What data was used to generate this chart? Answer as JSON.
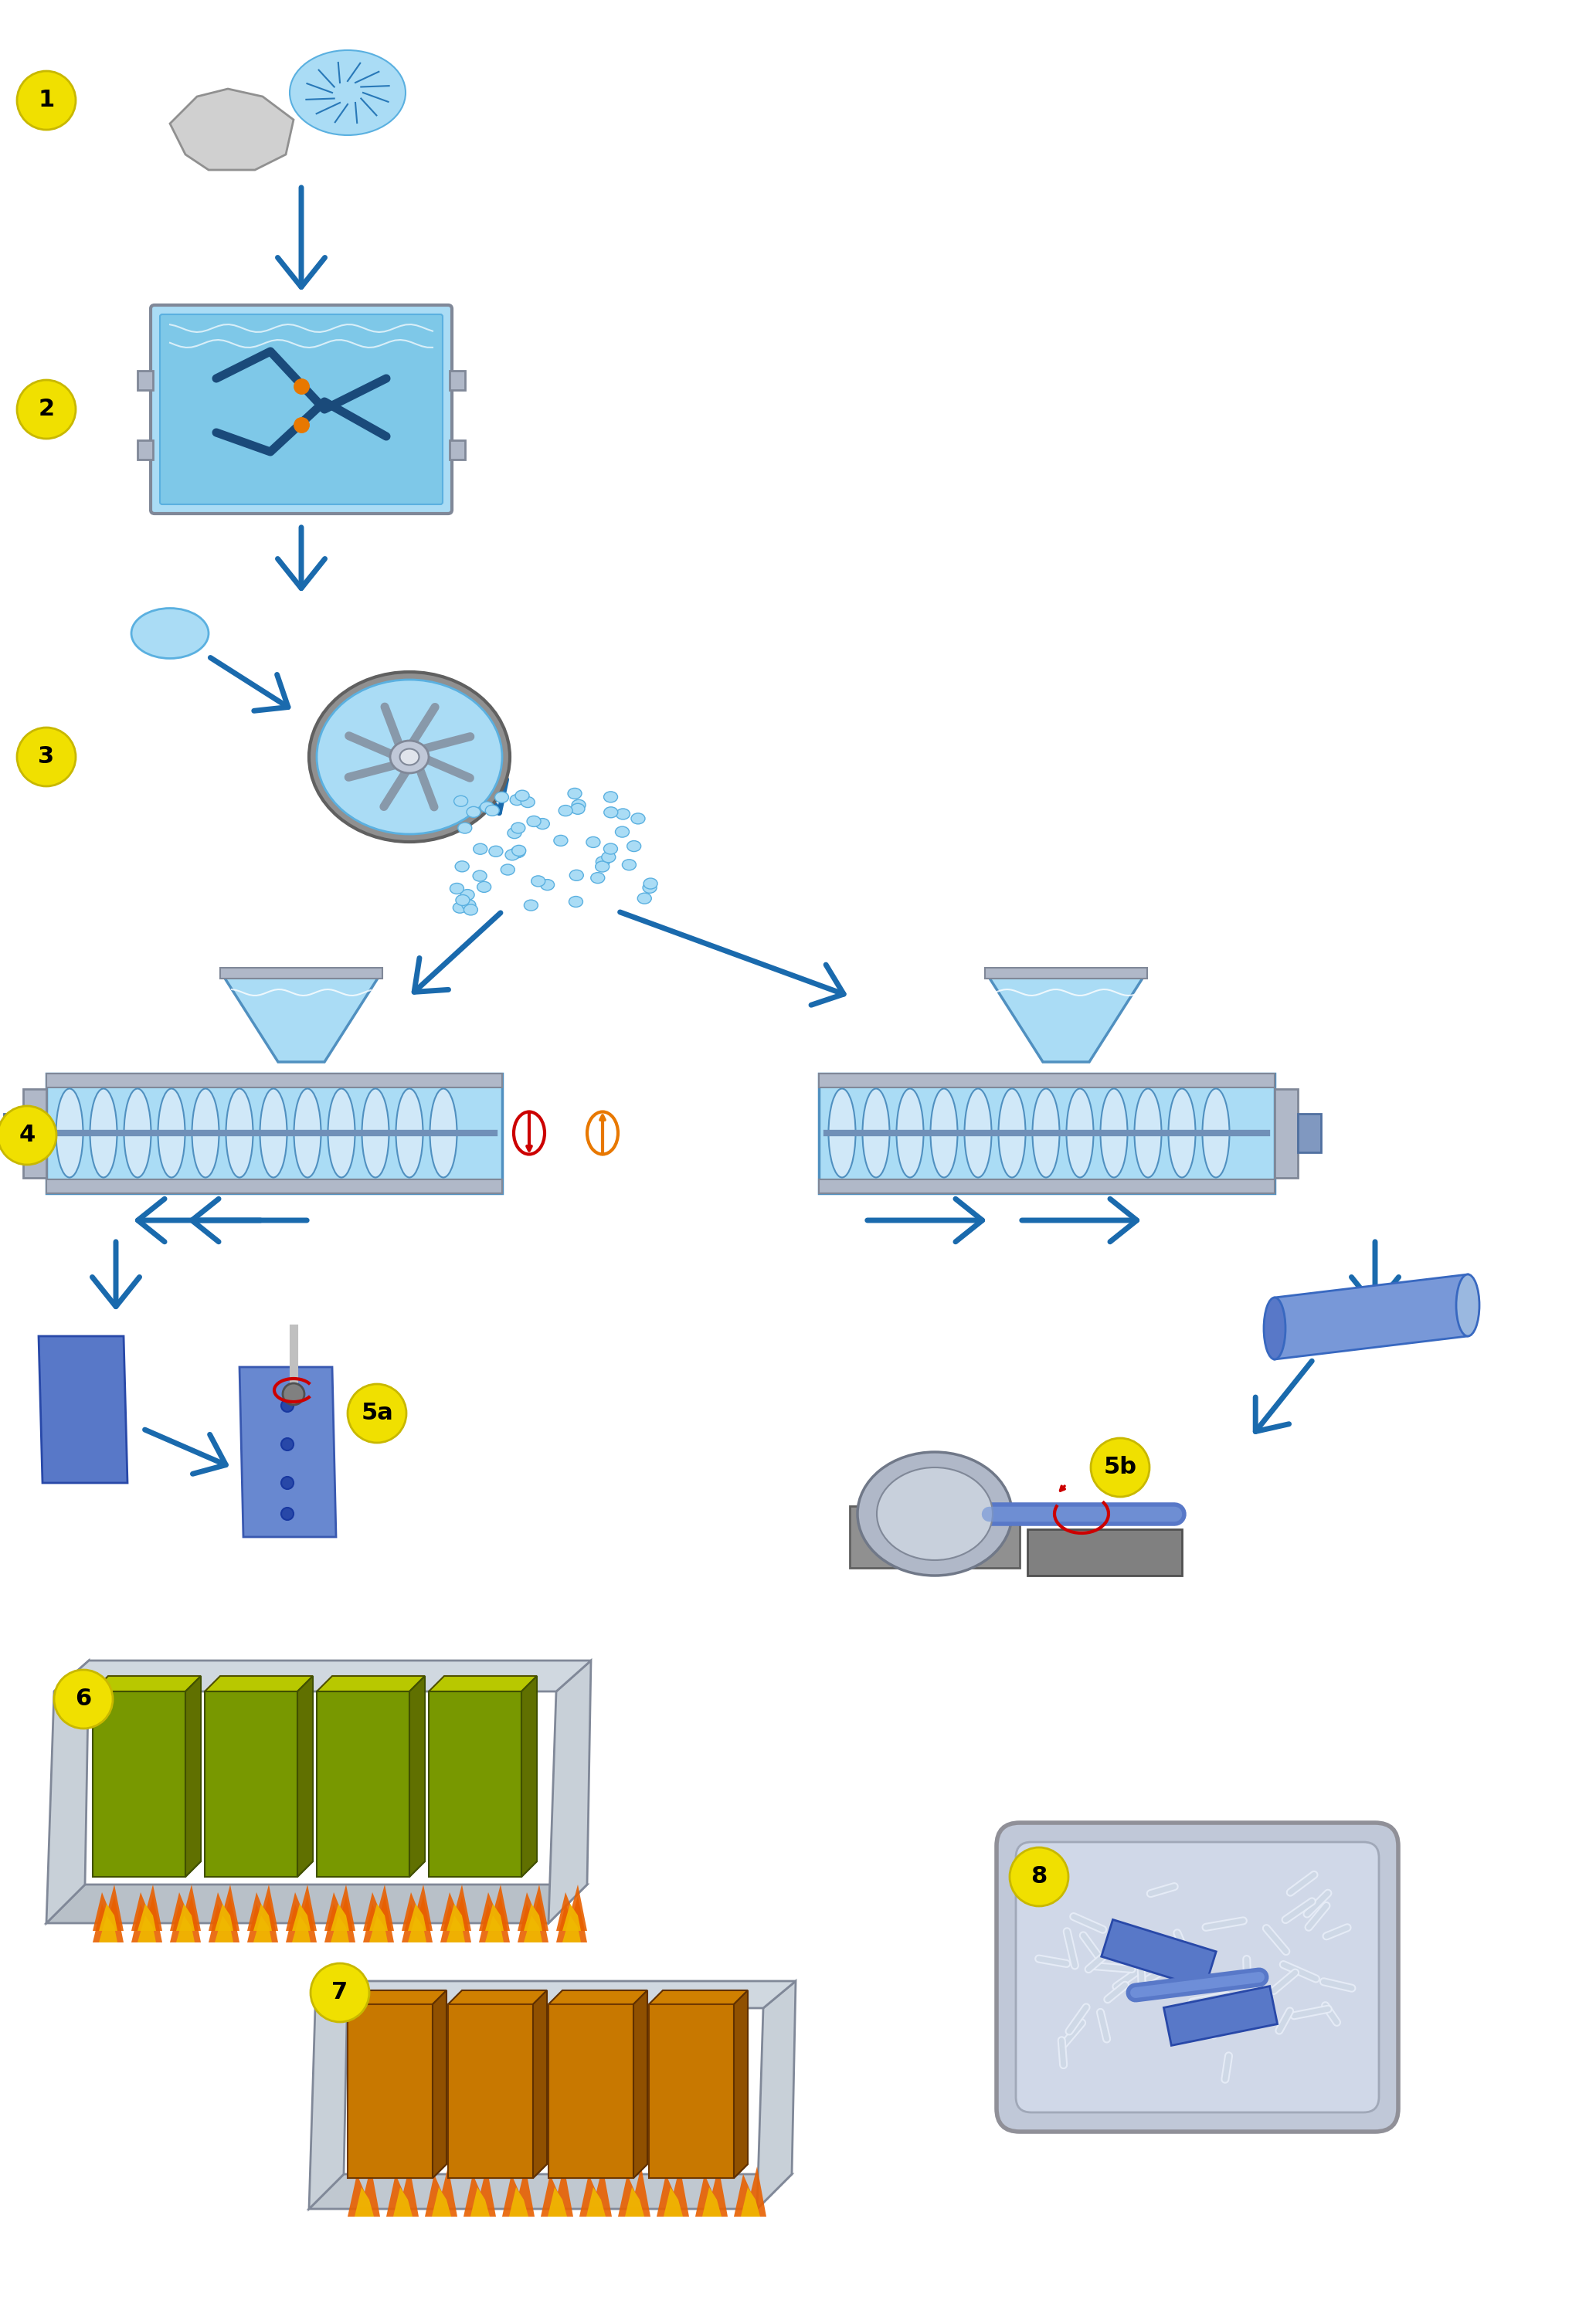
{
  "bg_color": "#ffffff",
  "step_circle_color": "#f0e000",
  "step_circle_edge": "#c8b800",
  "step_text_color": "#000000",
  "arrow_blue": "#1a6aad",
  "arrow_red": "#cc0000",
  "arrow_orange": "#e87800",
  "material_blue": "#5ab0e0",
  "material_blue_dark": "#2878b8",
  "material_blue_light": "#aadcf5",
  "material_gray": "#b0b8c8",
  "material_gray_dark": "#808898",
  "material_gray_light": "#d8dce8",
  "screw_blue": "#4890c8",
  "item_blue_solid": "#5878c8",
  "item_blue_mid": "#7898d8",
  "item_blue_light": "#a0b8e8",
  "flame_orange": "#e86000",
  "flame_yellow": "#f0b800",
  "mold_green": "#789800",
  "mold_yellow": "#b8c800",
  "mold_olive": "#909800",
  "mold_orange": "#d08000",
  "roller_gray": "#909090",
  "roller_silver": "#c0c8d0",
  "tray_silver": "#c8ccd8",
  "tray_edge": "#a0a8b8"
}
